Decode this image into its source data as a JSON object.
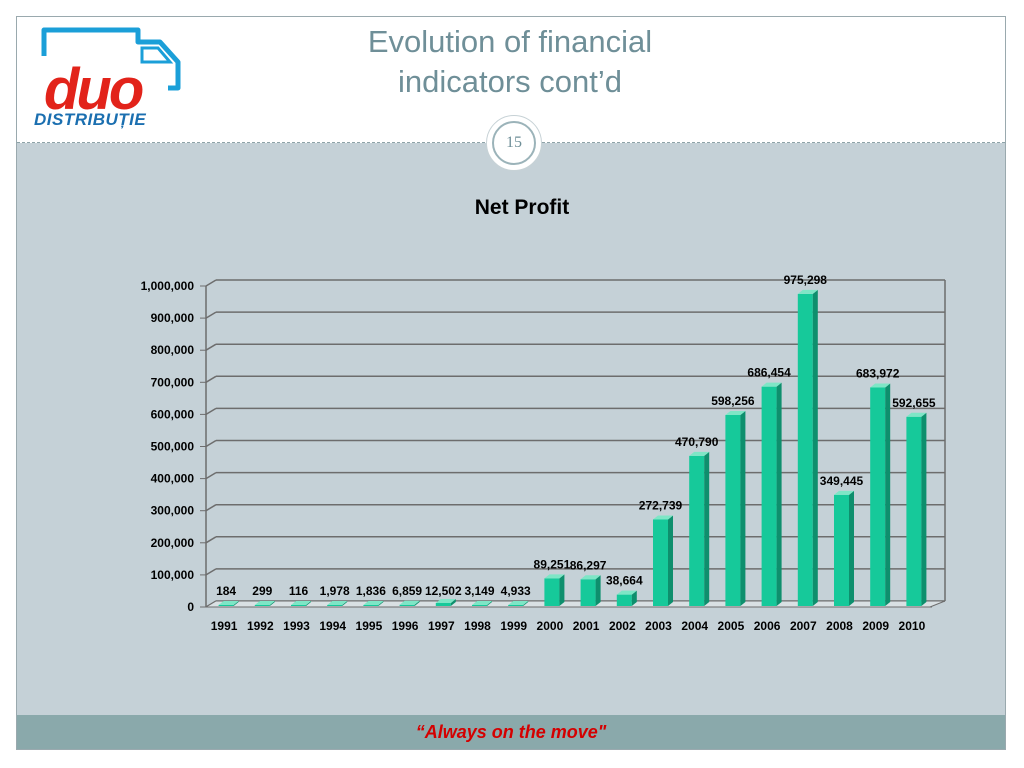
{
  "header": {
    "title_line1": "Evolution of financial",
    "title_line2": "indicators cont’d",
    "page_number": "15",
    "logo_word": "duo",
    "logo_sub": "DISTRIBUȚIE"
  },
  "footer": {
    "tagline": "“Always on the move\""
  },
  "colors": {
    "bar": "#16c99a",
    "bar_side": "#0e8f6d",
    "bar_top": "#7ee6c6",
    "content_bg": "#c5d1d7",
    "footer_bg": "#8aa9ab",
    "title": "#6f8f98",
    "logo_red": "#e2231a",
    "logo_blue": "#1b6fb0"
  },
  "chart_data": {
    "type": "bar",
    "title": "Net Profit",
    "xlabel": "",
    "ylabel": "",
    "ylim": [
      0,
      1000000
    ],
    "grid": true,
    "legend": "none",
    "yticks": [
      "0",
      "100,000",
      "200,000",
      "300,000",
      "400,000",
      "500,000",
      "600,000",
      "700,000",
      "800,000",
      "900,000",
      "1,000,000"
    ],
    "categories": [
      "1991",
      "1992",
      "1993",
      "1994",
      "1995",
      "1996",
      "1997",
      "1998",
      "1999",
      "2000",
      "2001",
      "2002",
      "2003",
      "2004",
      "2005",
      "2006",
      "2007",
      "2008",
      "2009",
      "2010"
    ],
    "values": [
      184,
      299,
      116,
      1978,
      1836,
      6859,
      12502,
      3149,
      4933,
      89251,
      86297,
      38664,
      272739,
      470790,
      598256,
      686454,
      975298,
      349445,
      683972,
      592655
    ],
    "value_labels": [
      "184",
      "299",
      "116",
      "1,978",
      "1,836",
      "6,859",
      "12,502",
      "3,149",
      "4,933",
      "89,251",
      "86,297",
      "38,664",
      "272,739",
      "470,790",
      "598,256",
      "686,454",
      "975,298",
      "349,445",
      "683,972",
      "592,655"
    ]
  }
}
